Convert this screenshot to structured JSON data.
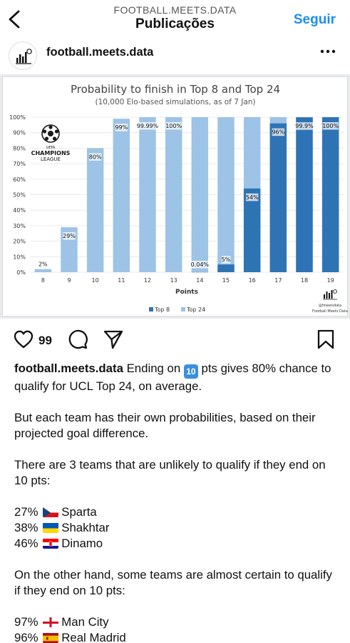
{
  "header": {
    "account": "FOOTBALL.MEETS.DATA",
    "title": "Publicações",
    "follow_label": "Seguir",
    "back_icon": "chevron-left-icon"
  },
  "post": {
    "username": "football.meets.data",
    "more_icon": "more-horizontal-icon"
  },
  "image": {
    "ucl_logo_text": [
      "UEFA",
      "CHAMPIONS",
      "LEAGUE"
    ],
    "brand_handle": "@fmeetsdata",
    "brand_name": "Football Meets Data"
  },
  "chart_data": {
    "type": "bar",
    "title": "Probability to finish in Top 8 and Top 24",
    "subtitle": "(10,000 Elo-based simulations, as of 7 Jan)",
    "xlabel": "Points",
    "ylabel": "",
    "ylim": [
      0,
      100
    ],
    "yticks": [
      "0%",
      "10%",
      "20%",
      "30%",
      "40%",
      "50%",
      "60%",
      "70%",
      "80%",
      "90%",
      "100%"
    ],
    "categories": [
      "8",
      "9",
      "10",
      "11",
      "12",
      "13",
      "14",
      "15",
      "16",
      "17",
      "18",
      "19"
    ],
    "series": [
      {
        "name": "Top 8",
        "color": "#2e74b5",
        "values": [
          0,
          0,
          0,
          0,
          0,
          0,
          0.04,
          5,
          54,
          96,
          99.9,
          100
        ]
      },
      {
        "name": "Top 24",
        "color": "#9dc3e6",
        "values": [
          2,
          29,
          80,
          99,
          99.99,
          100,
          100,
          100,
          100,
          100,
          100,
          100
        ]
      }
    ],
    "data_labels": [
      "2%",
      "29%",
      "80%",
      "99%",
      "99.99%",
      "100%",
      "0.04%",
      "5%",
      "54%",
      "96%",
      "99.9%",
      "100%"
    ],
    "label_series": [
      1,
      1,
      1,
      1,
      1,
      1,
      0,
      0,
      0,
      0,
      0,
      0
    ],
    "legend_position": "bottom",
    "grid": true
  },
  "actions": {
    "like_count": "99",
    "like_icon": "heart-icon",
    "comment_icon": "comment-icon",
    "share_icon": "paper-plane-icon",
    "save_icon": "bookmark-icon"
  },
  "caption": {
    "username": "football.meets.data",
    "line1_a": "Ending on",
    "badge": "10",
    "line1_b": "pts gives 80% chance to qualify for UCL Top 24, on average.",
    "p2": "But each team has their own probabilities, based on their projected goal difference.",
    "p3": "There are 3 teams that are unlikely to qualify if they end on 10 pts:",
    "teams_low": [
      {
        "pct": "27%",
        "name": "Sparta",
        "flag": "cz"
      },
      {
        "pct": "38%",
        "name": "Shakhtar",
        "flag": "ua"
      },
      {
        "pct": "46%",
        "name": "Dinamo",
        "flag": "hr"
      }
    ],
    "p4": "On the other hand, some teams are almost certain to qualify if they end on 10 pts:",
    "teams_high": [
      {
        "pct": "97%",
        "name": "Man City",
        "flag": "en"
      },
      {
        "pct": "96%",
        "name": "Real Madrid",
        "flag": "es"
      }
    ]
  }
}
